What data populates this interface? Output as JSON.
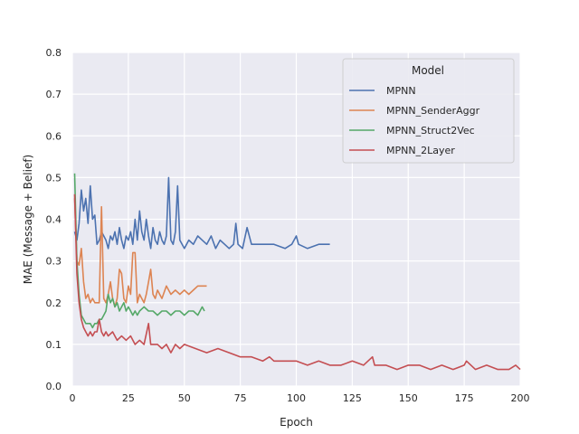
{
  "chart_data": {
    "type": "line",
    "title": "",
    "xlabel": "Epoch",
    "ylabel": "MAE (Message + Belief)",
    "xlim": [
      0,
      200
    ],
    "ylim": [
      0,
      0.8
    ],
    "x_ticks": [
      0,
      25,
      50,
      75,
      100,
      125,
      150,
      175,
      200
    ],
    "y_ticks": [
      0.0,
      0.1,
      0.2,
      0.3,
      0.4,
      0.5,
      0.6,
      0.7,
      0.8
    ],
    "x_tick_labels": [
      "0",
      "25",
      "50",
      "75",
      "100",
      "125",
      "150",
      "175",
      "200"
    ],
    "y_tick_labels": [
      "0.0",
      "0.1",
      "0.2",
      "0.3",
      "0.4",
      "0.5",
      "0.6",
      "0.7",
      "0.8"
    ],
    "grid": true,
    "background": "#eaeaf2",
    "legend": {
      "title": "Model",
      "placement": "top-right"
    },
    "series": [
      {
        "name": "MPNN",
        "color": "#4c72b0",
        "points": [
          [
            1,
            0.37
          ],
          [
            2,
            0.35
          ],
          [
            3,
            0.39
          ],
          [
            4,
            0.47
          ],
          [
            5,
            0.42
          ],
          [
            6,
            0.45
          ],
          [
            7,
            0.39
          ],
          [
            8,
            0.48
          ],
          [
            9,
            0.4
          ],
          [
            10,
            0.41
          ],
          [
            11,
            0.34
          ],
          [
            12,
            0.35
          ],
          [
            13,
            0.37
          ],
          [
            14,
            0.36
          ],
          [
            15,
            0.35
          ],
          [
            16,
            0.33
          ],
          [
            17,
            0.36
          ],
          [
            18,
            0.35
          ],
          [
            19,
            0.37
          ],
          [
            20,
            0.34
          ],
          [
            21,
            0.38
          ],
          [
            22,
            0.35
          ],
          [
            23,
            0.33
          ],
          [
            24,
            0.36
          ],
          [
            25,
            0.35
          ],
          [
            26,
            0.37
          ],
          [
            27,
            0.34
          ],
          [
            28,
            0.4
          ],
          [
            29,
            0.35
          ],
          [
            30,
            0.42
          ],
          [
            31,
            0.37
          ],
          [
            32,
            0.35
          ],
          [
            33,
            0.4
          ],
          [
            34,
            0.36
          ],
          [
            35,
            0.33
          ],
          [
            36,
            0.38
          ],
          [
            37,
            0.35
          ],
          [
            38,
            0.34
          ],
          [
            39,
            0.37
          ],
          [
            40,
            0.35
          ],
          [
            41,
            0.34
          ],
          [
            42,
            0.36
          ],
          [
            43,
            0.5
          ],
          [
            44,
            0.35
          ],
          [
            45,
            0.34
          ],
          [
            46,
            0.37
          ],
          [
            47,
            0.48
          ],
          [
            48,
            0.35
          ],
          [
            49,
            0.34
          ],
          [
            50,
            0.33
          ],
          [
            52,
            0.35
          ],
          [
            54,
            0.34
          ],
          [
            56,
            0.36
          ],
          [
            58,
            0.35
          ],
          [
            60,
            0.34
          ],
          [
            62,
            0.36
          ],
          [
            64,
            0.33
          ],
          [
            66,
            0.35
          ],
          [
            68,
            0.34
          ],
          [
            70,
            0.33
          ],
          [
            72,
            0.34
          ],
          [
            73,
            0.39
          ],
          [
            74,
            0.34
          ],
          [
            76,
            0.33
          ],
          [
            78,
            0.38
          ],
          [
            80,
            0.34
          ],
          [
            85,
            0.34
          ],
          [
            90,
            0.34
          ],
          [
            95,
            0.33
          ],
          [
            98,
            0.34
          ],
          [
            100,
            0.36
          ],
          [
            101,
            0.34
          ],
          [
            105,
            0.33
          ],
          [
            110,
            0.34
          ],
          [
            115,
            0.34
          ]
        ]
      },
      {
        "name": "MPNN_SenderAggr",
        "color": "#dd8452",
        "points": [
          [
            1,
            0.45
          ],
          [
            2,
            0.3
          ],
          [
            3,
            0.29
          ],
          [
            4,
            0.33
          ],
          [
            5,
            0.25
          ],
          [
            6,
            0.21
          ],
          [
            7,
            0.22
          ],
          [
            8,
            0.2
          ],
          [
            9,
            0.21
          ],
          [
            10,
            0.2
          ],
          [
            11,
            0.2
          ],
          [
            12,
            0.2
          ],
          [
            13,
            0.43
          ],
          [
            14,
            0.21
          ],
          [
            15,
            0.2
          ],
          [
            16,
            0.22
          ],
          [
            17,
            0.25
          ],
          [
            18,
            0.21
          ],
          [
            19,
            0.19
          ],
          [
            20,
            0.21
          ],
          [
            21,
            0.28
          ],
          [
            22,
            0.27
          ],
          [
            23,
            0.21
          ],
          [
            24,
            0.2
          ],
          [
            25,
            0.24
          ],
          [
            26,
            0.22
          ],
          [
            27,
            0.32
          ],
          [
            28,
            0.32
          ],
          [
            29,
            0.2
          ],
          [
            30,
            0.22
          ],
          [
            31,
            0.21
          ],
          [
            32,
            0.2
          ],
          [
            33,
            0.22
          ],
          [
            34,
            0.25
          ],
          [
            35,
            0.28
          ],
          [
            36,
            0.22
          ],
          [
            37,
            0.21
          ],
          [
            38,
            0.23
          ],
          [
            39,
            0.22
          ],
          [
            40,
            0.21
          ],
          [
            42,
            0.24
          ],
          [
            44,
            0.22
          ],
          [
            46,
            0.23
          ],
          [
            48,
            0.22
          ],
          [
            50,
            0.23
          ],
          [
            52,
            0.22
          ],
          [
            54,
            0.23
          ],
          [
            56,
            0.24
          ],
          [
            58,
            0.24
          ],
          [
            60,
            0.24
          ]
        ]
      },
      {
        "name": "MPNN_Struct2Vec",
        "color": "#55a868",
        "points": [
          [
            1,
            0.51
          ],
          [
            2,
            0.3
          ],
          [
            3,
            0.22
          ],
          [
            4,
            0.17
          ],
          [
            5,
            0.16
          ],
          [
            6,
            0.15
          ],
          [
            7,
            0.15
          ],
          [
            8,
            0.15
          ],
          [
            9,
            0.14
          ],
          [
            10,
            0.15
          ],
          [
            11,
            0.15
          ],
          [
            12,
            0.16
          ],
          [
            13,
            0.16
          ],
          [
            14,
            0.17
          ],
          [
            15,
            0.18
          ],
          [
            16,
            0.22
          ],
          [
            17,
            0.2
          ],
          [
            18,
            0.21
          ],
          [
            19,
            0.19
          ],
          [
            20,
            0.2
          ],
          [
            21,
            0.18
          ],
          [
            22,
            0.19
          ],
          [
            23,
            0.2
          ],
          [
            24,
            0.18
          ],
          [
            25,
            0.19
          ],
          [
            26,
            0.18
          ],
          [
            27,
            0.17
          ],
          [
            28,
            0.18
          ],
          [
            29,
            0.17
          ],
          [
            30,
            0.18
          ],
          [
            32,
            0.19
          ],
          [
            34,
            0.18
          ],
          [
            36,
            0.18
          ],
          [
            38,
            0.17
          ],
          [
            40,
            0.18
          ],
          [
            42,
            0.18
          ],
          [
            44,
            0.17
          ],
          [
            46,
            0.18
          ],
          [
            48,
            0.18
          ],
          [
            50,
            0.17
          ],
          [
            52,
            0.18
          ],
          [
            54,
            0.18
          ],
          [
            56,
            0.17
          ],
          [
            58,
            0.19
          ],
          [
            59,
            0.18
          ]
        ]
      },
      {
        "name": "MPNN_2Layer",
        "color": "#c44e52",
        "points": [
          [
            1,
            0.46
          ],
          [
            2,
            0.27
          ],
          [
            3,
            0.2
          ],
          [
            4,
            0.16
          ],
          [
            5,
            0.14
          ],
          [
            6,
            0.13
          ],
          [
            7,
            0.12
          ],
          [
            8,
            0.13
          ],
          [
            9,
            0.12
          ],
          [
            10,
            0.13
          ],
          [
            11,
            0.13
          ],
          [
            12,
            0.16
          ],
          [
            13,
            0.13
          ],
          [
            14,
            0.12
          ],
          [
            15,
            0.13
          ],
          [
            16,
            0.12
          ],
          [
            18,
            0.13
          ],
          [
            20,
            0.11
          ],
          [
            22,
            0.12
          ],
          [
            24,
            0.11
          ],
          [
            26,
            0.12
          ],
          [
            28,
            0.1
          ],
          [
            30,
            0.11
          ],
          [
            32,
            0.1
          ],
          [
            34,
            0.15
          ],
          [
            35,
            0.1
          ],
          [
            38,
            0.1
          ],
          [
            40,
            0.09
          ],
          [
            42,
            0.1
          ],
          [
            44,
            0.08
          ],
          [
            46,
            0.1
          ],
          [
            48,
            0.09
          ],
          [
            50,
            0.1
          ],
          [
            55,
            0.09
          ],
          [
            60,
            0.08
          ],
          [
            65,
            0.09
          ],
          [
            70,
            0.08
          ],
          [
            75,
            0.07
          ],
          [
            80,
            0.07
          ],
          [
            85,
            0.06
          ],
          [
            88,
            0.07
          ],
          [
            90,
            0.06
          ],
          [
            95,
            0.06
          ],
          [
            100,
            0.06
          ],
          [
            105,
            0.05
          ],
          [
            110,
            0.06
          ],
          [
            115,
            0.05
          ],
          [
            120,
            0.05
          ],
          [
            125,
            0.06
          ],
          [
            130,
            0.05
          ],
          [
            134,
            0.07
          ],
          [
            135,
            0.05
          ],
          [
            140,
            0.05
          ],
          [
            145,
            0.04
          ],
          [
            150,
            0.05
          ],
          [
            155,
            0.05
          ],
          [
            160,
            0.04
          ],
          [
            165,
            0.05
          ],
          [
            170,
            0.04
          ],
          [
            175,
            0.05
          ],
          [
            176,
            0.06
          ],
          [
            180,
            0.04
          ],
          [
            185,
            0.05
          ],
          [
            190,
            0.04
          ],
          [
            195,
            0.04
          ],
          [
            198,
            0.05
          ],
          [
            200,
            0.04
          ]
        ]
      }
    ]
  }
}
